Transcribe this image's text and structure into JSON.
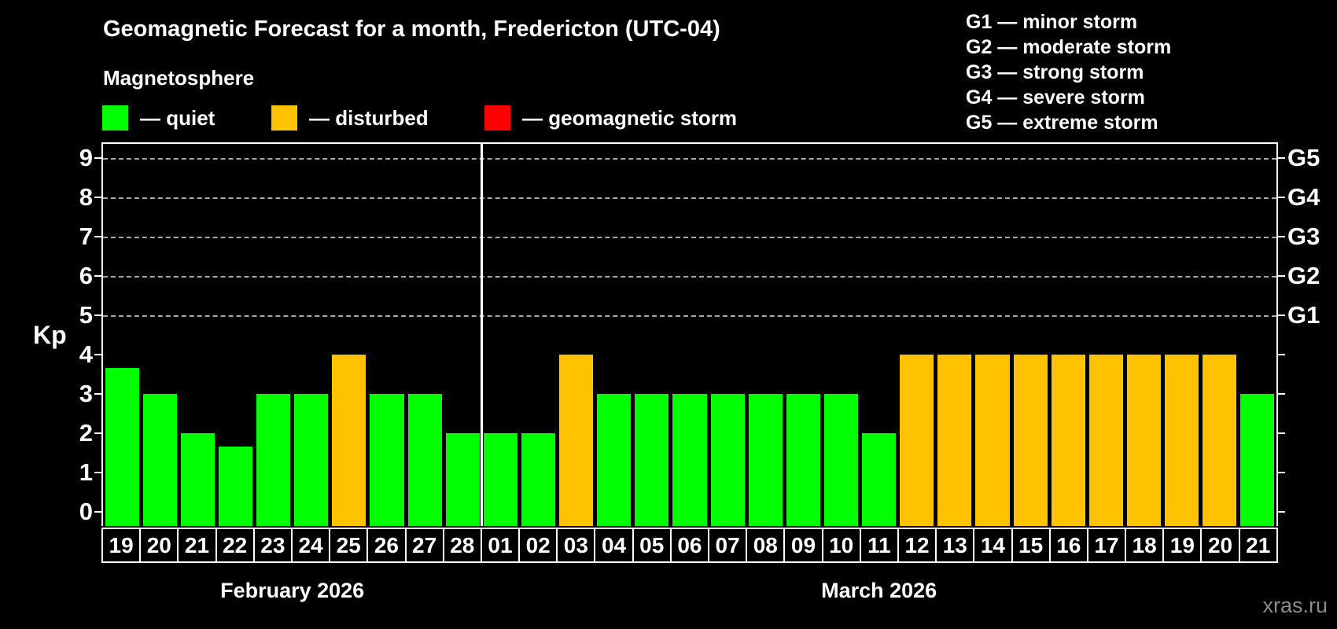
{
  "title": "Geomagnetic Forecast for a month, Fredericton (UTC-04)",
  "subtitle": "Magnetosphere",
  "legend": {
    "quiet": "— quiet",
    "disturbed": "— disturbed",
    "storm": "— geomagnetic storm"
  },
  "g_scale_legend": [
    "G1 — minor storm",
    "G2 — moderate storm",
    "G3 — strong storm",
    "G4 — severe storm",
    "G5 — extreme storm"
  ],
  "colors": {
    "quiet": "#00ff00",
    "disturbed": "#ffc200",
    "storm": "#ff0000",
    "grid": "#a8a8a8",
    "axis": "#ffffff",
    "watermark": "#8c8c8c",
    "background": "#000000"
  },
  "y_axis": {
    "label": "Kp",
    "ticks": [
      0,
      1,
      2,
      3,
      4,
      5,
      6,
      7,
      8,
      9
    ],
    "gridlines": [
      5,
      6,
      7,
      8,
      9
    ]
  },
  "right_axis": {
    "labels": [
      {
        "text": "G1",
        "kp": 5
      },
      {
        "text": "G2",
        "kp": 6
      },
      {
        "text": "G3",
        "kp": 7
      },
      {
        "text": "G4",
        "kp": 8
      },
      {
        "text": "G5",
        "kp": 9
      }
    ]
  },
  "watermark": "xras.ru",
  "chart_data": {
    "type": "bar",
    "title": "Geomagnetic Forecast for a month, Fredericton (UTC-04)",
    "ylabel": "Kp",
    "ylim": [
      0,
      9
    ],
    "grid_kp": [
      5,
      6,
      7,
      8,
      9
    ],
    "legend_position": "top",
    "months": [
      {
        "label": "February 2026",
        "count": 10
      },
      {
        "label": "March 2026",
        "count": 21
      }
    ],
    "bars": [
      {
        "day": "19",
        "kp": 3.67,
        "status": "quiet"
      },
      {
        "day": "20",
        "kp": 3,
        "status": "quiet"
      },
      {
        "day": "21",
        "kp": 2,
        "status": "quiet"
      },
      {
        "day": "22",
        "kp": 1.67,
        "status": "quiet"
      },
      {
        "day": "23",
        "kp": 3,
        "status": "quiet"
      },
      {
        "day": "24",
        "kp": 3,
        "status": "quiet"
      },
      {
        "day": "25",
        "kp": 4,
        "status": "disturbed"
      },
      {
        "day": "26",
        "kp": 3,
        "status": "quiet"
      },
      {
        "day": "27",
        "kp": 3,
        "status": "quiet"
      },
      {
        "day": "28",
        "kp": 2,
        "status": "quiet"
      },
      {
        "day": "01",
        "kp": 2,
        "status": "quiet"
      },
      {
        "day": "02",
        "kp": 2,
        "status": "quiet"
      },
      {
        "day": "03",
        "kp": 4,
        "status": "disturbed"
      },
      {
        "day": "04",
        "kp": 3,
        "status": "quiet"
      },
      {
        "day": "05",
        "kp": 3,
        "status": "quiet"
      },
      {
        "day": "06",
        "kp": 3,
        "status": "quiet"
      },
      {
        "day": "07",
        "kp": 3,
        "status": "quiet"
      },
      {
        "day": "08",
        "kp": 3,
        "status": "quiet"
      },
      {
        "day": "09",
        "kp": 3,
        "status": "quiet"
      },
      {
        "day": "10",
        "kp": 3,
        "status": "quiet"
      },
      {
        "day": "11",
        "kp": 2,
        "status": "quiet"
      },
      {
        "day": "12",
        "kp": 4,
        "status": "disturbed"
      },
      {
        "day": "13",
        "kp": 4,
        "status": "disturbed"
      },
      {
        "day": "14",
        "kp": 4,
        "status": "disturbed"
      },
      {
        "day": "15",
        "kp": 4,
        "status": "disturbed"
      },
      {
        "day": "16",
        "kp": 4,
        "status": "disturbed"
      },
      {
        "day": "17",
        "kp": 4,
        "status": "disturbed"
      },
      {
        "day": "18",
        "kp": 4,
        "status": "disturbed"
      },
      {
        "day": "19",
        "kp": 4,
        "status": "disturbed"
      },
      {
        "day": "20",
        "kp": 4,
        "status": "disturbed"
      },
      {
        "day": "21",
        "kp": 3,
        "status": "quiet"
      }
    ]
  }
}
